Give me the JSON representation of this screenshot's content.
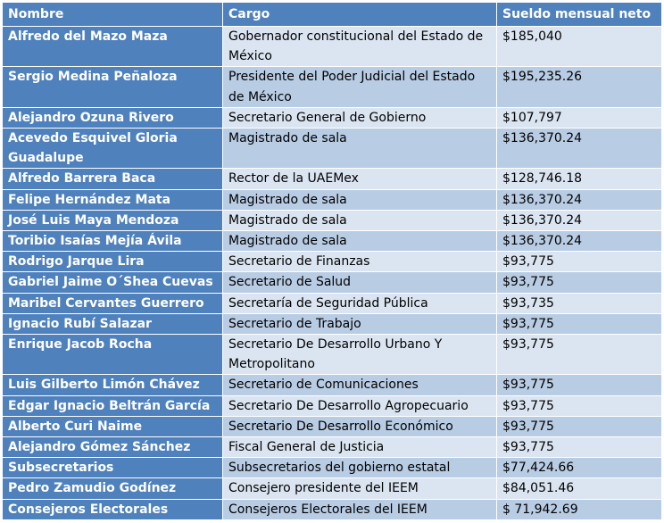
{
  "table": {
    "headers": {
      "nombre": "Nombre",
      "cargo": "Cargo",
      "sueldo": "Sueldo mensual neto"
    },
    "rows": [
      {
        "nombre": "Alfredo del Mazo Maza",
        "cargo": "Gobernador constitucional del Estado de México",
        "sueldo": "$185,040"
      },
      {
        "nombre": "Sergio Medina Peñaloza",
        "cargo": "Presidente del Poder Judicial del Estado de México",
        "sueldo": "$195,235.26"
      },
      {
        "nombre": "Alejandro Ozuna Rivero",
        "cargo": "Secretario General de Gobierno",
        "sueldo": "$107,797"
      },
      {
        "nombre": "Acevedo Esquivel Gloria Guadalupe",
        "cargo": "Magistrado de sala",
        "sueldo": "$136,370.24"
      },
      {
        "nombre": "Alfredo Barrera Baca",
        "cargo": "Rector de la UAEMex",
        "sueldo": "$128,746.18"
      },
      {
        "nombre": "Felipe Hernández Mata",
        "cargo": "Magistrado de sala",
        "sueldo": "$136,370.24"
      },
      {
        "nombre": "José Luis Maya Mendoza",
        "cargo": "Magistrado de sala",
        "sueldo": "$136,370.24"
      },
      {
        "nombre": "Toribio Isaías Mejía Ávila",
        "cargo": "Magistrado de sala",
        "sueldo": "$136,370.24"
      },
      {
        "nombre": "Rodrigo Jarque Lira",
        "cargo": "Secretario de Finanzas",
        "sueldo": "$93,775"
      },
      {
        "nombre": "Gabriel Jaime O´Shea Cuevas",
        "cargo": "Secretario de Salud",
        "sueldo": "$93,775"
      },
      {
        "nombre": "Maribel Cervantes Guerrero",
        "cargo": "Secretaría de Seguridad Pública",
        "sueldo": "$93,735"
      },
      {
        "nombre": "Ignacio Rubí Salazar",
        "cargo": "Secretario de Trabajo",
        "sueldo": "$93,775"
      },
      {
        "nombre": "Enrique Jacob Rocha",
        "cargo": "Secretario De Desarrollo Urbano Y Metropolitano",
        "sueldo": "$93,775"
      },
      {
        "nombre": "Luis Gilberto Limón Chávez",
        "cargo": "Secretario de Comunicaciones",
        "sueldo": "$93,775"
      },
      {
        "nombre": "Edgar Ignacio Beltrán García",
        "cargo": "Secretario De Desarrollo Agropecuario",
        "sueldo": "$93,775"
      },
      {
        "nombre": "Alberto Curi Naime",
        "cargo": "Secretario De Desarrollo Económico",
        "sueldo": "$93,775"
      },
      {
        "nombre": "Alejandro Gómez Sánchez",
        "cargo": "Fiscal General de Justicia",
        "sueldo": "$93,775"
      },
      {
        "nombre": "Subsecretarios",
        "cargo": "Subsecretarios del gobierno estatal",
        "sueldo": "$77,424.66"
      },
      {
        "nombre": "Pedro Zamudio Godínez",
        "cargo": "Consejero presidente del IEEM",
        "sueldo": "$84,051.46"
      },
      {
        "nombre": "Consejeros Electorales",
        "cargo": "Consejeros Electorales del IEEM",
        "sueldo": "$ 71,942.69"
      }
    ]
  }
}
